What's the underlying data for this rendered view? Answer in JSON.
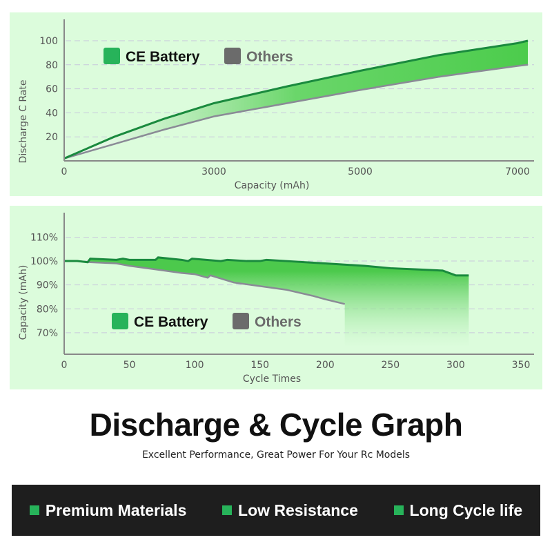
{
  "chart_data": [
    {
      "type": "area",
      "xlabel": "Capacity (mAh)",
      "ylabel": "Discharge C Rate",
      "xticks": [
        0,
        3000,
        5000,
        7000
      ],
      "yticks": [
        20,
        40,
        60,
        80,
        100
      ],
      "ylim": [
        0,
        115
      ],
      "grid": "horizontal dashed",
      "legend": {
        "placement": "top-left",
        "items": [
          "CE Battery",
          "Others"
        ]
      },
      "series": [
        {
          "name": "CE Battery",
          "color": "#1a8a3e",
          "x": [
            0,
            1000,
            2000,
            3000,
            4000,
            5000,
            6000,
            7000,
            7100
          ],
          "y": [
            2,
            20,
            35,
            48,
            62,
            75,
            88,
            98,
            100
          ]
        },
        {
          "name": "Others",
          "color": "#8a8a96",
          "x": [
            0,
            1000,
            2000,
            3000,
            4000,
            5000,
            6000,
            7000,
            7100
          ],
          "y": [
            2,
            14,
            26,
            37,
            48,
            59,
            70,
            79,
            80
          ]
        }
      ]
    },
    {
      "type": "area",
      "xlabel": "Cycle Times",
      "ylabel": "Capacity (mAh)",
      "xticks": [
        0,
        50,
        100,
        150,
        200,
        250,
        300,
        350
      ],
      "yticks": [
        "70%",
        "80%",
        "90%",
        "100%",
        "110%"
      ],
      "ylim": [
        61,
        115
      ],
      "xlim": [
        0,
        350
      ],
      "grid": "horizontal dashed",
      "legend": {
        "placement": "bottom-left",
        "items": [
          "CE Battery",
          "Others"
        ]
      },
      "series": [
        {
          "name": "CE Battery",
          "color": "#1a8a3e",
          "x": [
            0,
            10,
            18,
            20,
            40,
            45,
            50,
            70,
            72,
            90,
            95,
            98,
            120,
            125,
            140,
            150,
            155,
            170,
            200,
            230,
            250,
            270,
            290,
            300,
            310
          ],
          "y": [
            100,
            100,
            99.5,
            101,
            100.5,
            101,
            100.5,
            100.5,
            101.5,
            100.5,
            100,
            101,
            100,
            100.5,
            100,
            100,
            100.5,
            100,
            99,
            98,
            97,
            96.5,
            96,
            94,
            94
          ]
        },
        {
          "name": "Others",
          "color": "#8a8a96",
          "x": [
            0,
            10,
            20,
            40,
            50,
            70,
            90,
            100,
            110,
            112,
            130,
            150,
            170,
            190,
            200,
            215
          ],
          "y": [
            100,
            100,
            99.5,
            99,
            98,
            96.5,
            95,
            94.5,
            93,
            94,
            91,
            89.5,
            88,
            85.5,
            84,
            82
          ]
        }
      ]
    }
  ],
  "legend": {
    "ce": "CE Battery",
    "others": "Others"
  },
  "headline": "Discharge & Cycle Graph",
  "subtitle": "Excellent Performance, Great Power For Your Rc Models",
  "features": [
    "Premium Materials",
    "Low Resistance",
    "Long Cycle life"
  ],
  "colors": {
    "panel": "#dcfcdc",
    "ce": "#27b35a",
    "others": "#6b6b6b",
    "bar": "#1e1e1e"
  }
}
